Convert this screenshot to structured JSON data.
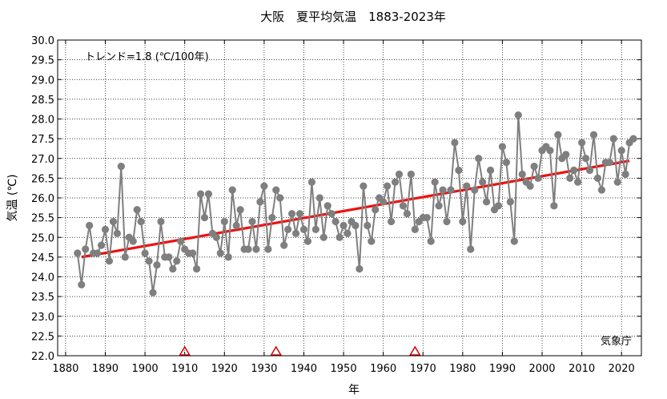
{
  "chart_data": {
    "type": "line",
    "title": "大阪　夏平均気温　1883-2023年",
    "xlabel": "年",
    "ylabel": "気温 (℃)",
    "trend_label": "トレンド=1.8 (℃/100年)",
    "source_label": "気象庁",
    "xlim": [
      1878,
      2025
    ],
    "ylim": [
      22.0,
      30.0
    ],
    "x_ticks": [
      1880,
      1890,
      1900,
      1910,
      1920,
      1930,
      1940,
      1950,
      1960,
      1970,
      1980,
      1990,
      2000,
      2010,
      2020
    ],
    "y_ticks": [
      22.0,
      22.5,
      23.0,
      23.5,
      24.0,
      24.5,
      25.0,
      25.5,
      26.0,
      26.5,
      27.0,
      27.5,
      28.0,
      28.5,
      29.0,
      29.5,
      30.0
    ],
    "grid": true,
    "colors": {
      "series": "#7f7f7f",
      "marker": "#7f7f7f",
      "trend": "#ee1111",
      "marker_triangle": "#dd0000"
    },
    "series": [
      {
        "x": [
          1883,
          1884,
          1885,
          1886,
          1887,
          1888,
          1889,
          1890,
          1891,
          1892,
          1893,
          1894,
          1895,
          1896,
          1897,
          1898,
          1899,
          1900,
          1901,
          1902,
          1903,
          1904,
          1905,
          1906,
          1907,
          1908,
          1909,
          1910,
          1911,
          1912,
          1913,
          1914,
          1915,
          1916,
          1917,
          1918,
          1919,
          1920,
          1921,
          1922,
          1923,
          1924,
          1925,
          1926,
          1927,
          1928,
          1929,
          1930,
          1931,
          1932,
          1933,
          1934,
          1935,
          1936,
          1937,
          1938,
          1939,
          1940,
          1941,
          1942,
          1943,
          1944,
          1945,
          1946,
          1947,
          1948,
          1949,
          1950,
          1951,
          1952,
          1953,
          1954,
          1955,
          1956,
          1957,
          1958,
          1959,
          1960,
          1961,
          1962,
          1963,
          1964,
          1965,
          1966,
          1967,
          1968,
          1969,
          1970,
          1971,
          1972,
          1973,
          1974,
          1975,
          1976,
          1977,
          1978,
          1979,
          1980,
          1981,
          1982,
          1983,
          1984,
          1985,
          1986,
          1987,
          1988,
          1989,
          1990,
          1991,
          1992,
          1993,
          1994,
          1995,
          1996,
          1997,
          1998,
          1999,
          2000,
          2001,
          2002,
          2003,
          2004,
          2005,
          2006,
          2007,
          2008,
          2009,
          2010,
          2011,
          2012,
          2013,
          2014,
          2015,
          2016,
          2017,
          2018,
          2019,
          2020,
          2021,
          2022,
          2023
        ],
        "values": [
          24.6,
          23.8,
          24.7,
          25.3,
          24.6,
          24.6,
          24.8,
          25.2,
          24.4,
          25.4,
          25.1,
          26.8,
          24.5,
          25.0,
          24.9,
          25.7,
          25.4,
          24.6,
          24.4,
          23.6,
          24.3,
          25.4,
          24.5,
          24.5,
          24.2,
          24.4,
          24.9,
          24.7,
          24.6,
          24.6,
          24.2,
          26.1,
          25.5,
          26.1,
          25.1,
          25.0,
          24.6,
          25.4,
          24.5,
          26.2,
          25.3,
          25.7,
          24.7,
          24.7,
          25.4,
          24.7,
          25.9,
          26.3,
          24.7,
          25.5,
          26.2,
          26.0,
          24.8,
          25.2,
          25.6,
          25.1,
          25.6,
          25.2,
          24.9,
          26.4,
          25.2,
          26.0,
          25.0,
          25.8,
          25.6,
          25.4,
          25.0,
          25.3,
          25.1,
          25.4,
          25.3,
          24.2,
          26.3,
          25.3,
          24.9,
          25.7,
          26.0,
          25.9,
          26.3,
          25.4,
          26.4,
          26.6,
          25.8,
          25.6,
          26.6,
          25.2,
          25.4,
          25.5,
          25.5,
          24.9,
          26.4,
          25.8,
          26.2,
          25.4,
          26.2,
          27.4,
          26.7,
          25.4,
          26.3,
          24.7,
          26.2,
          27.0,
          26.4,
          25.9,
          26.7,
          25.7,
          25.8,
          27.3,
          26.9,
          25.9,
          24.9,
          28.1,
          26.6,
          26.4,
          26.3,
          26.8,
          26.5,
          27.2,
          27.3,
          27.2,
          25.8,
          27.6,
          27.0,
          27.1,
          26.5,
          26.7,
          26.4,
          27.4,
          27.0,
          26.7,
          27.6,
          26.5,
          26.2,
          26.9,
          26.9,
          27.5,
          26.4,
          27.2,
          26.6,
          27.4,
          27.5
        ]
      }
    ],
    "trend": {
      "x": [
        1884,
        2022
      ],
      "y": [
        24.5,
        26.94
      ]
    },
    "station_change_years": [
      1910,
      1933,
      1968
    ]
  }
}
